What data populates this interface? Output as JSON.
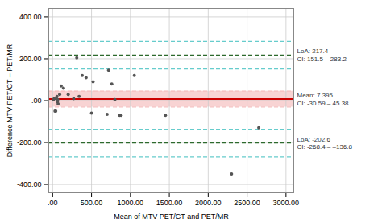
{
  "chart_data": {
    "type": "scatter",
    "xlabel": "Mean of MTV PET/CT and PET/MR",
    "ylabel": "Difference MTV PET/CT – PET/MR",
    "xlim": [
      -50,
      3100
    ],
    "ylim": [
      -440,
      440
    ],
    "xticks": [
      {
        "value": 0,
        "label": ".00"
      },
      {
        "value": 500,
        "label": "500.00"
      },
      {
        "value": 1000,
        "label": "1000.00"
      },
      {
        "value": 1500,
        "label": "1500.00"
      },
      {
        "value": 2000,
        "label": "2000.00"
      },
      {
        "value": 2500,
        "label": "2500.00"
      },
      {
        "value": 3000,
        "label": "3000.00"
      }
    ],
    "yticks": [
      {
        "value": -400,
        "label": "-400.00"
      },
      {
        "value": -200,
        "label": "-200.00"
      },
      {
        "value": 0,
        "label": ".00"
      },
      {
        "value": 200,
        "label": "200.00"
      },
      {
        "value": 400,
        "label": "400.00"
      }
    ],
    "grid": true,
    "color": "#555555",
    "x": [
      10,
      20,
      30,
      40,
      50,
      55,
      60,
      65,
      70,
      90,
      110,
      140,
      200,
      270,
      310,
      340,
      380,
      430,
      500,
      520,
      700,
      720,
      760,
      800,
      860,
      880,
      1050,
      1450,
      2300,
      2650
    ],
    "values": [
      5,
      10,
      -50,
      -50,
      10,
      20,
      -5,
      5,
      -15,
      30,
      70,
      60,
      30,
      10,
      205,
      20,
      120,
      110,
      -60,
      90,
      -65,
      145,
      80,
      5,
      -70,
      -70,
      120,
      -70,
      -350,
      -130
    ],
    "band": {
      "lower": -30.59,
      "upper": 45.38,
      "color": "#f5c0c0"
    },
    "reference_lines": [
      {
        "value": 151.5,
        "color": "#66cccc",
        "line_style": "dashed"
      },
      {
        "value": 283.2,
        "color": "#66cccc",
        "line_style": "dashed"
      },
      {
        "value": -268.4,
        "color": "#66cccc",
        "line_style": "dashed"
      },
      {
        "value": -136.8,
        "color": "#66cccc",
        "line_style": "dashed"
      },
      {
        "value": -30.59,
        "color": "#f5c0c0",
        "line_style": "dashed"
      },
      {
        "value": 45.38,
        "color": "#f5c0c0",
        "line_style": "dashed"
      },
      {
        "value": 7.395,
        "color": "#cc0000",
        "line_style": "solid"
      },
      {
        "value": 217.4,
        "color": "#2d6a2d",
        "line_style": "dashed"
      },
      {
        "value": -202.6,
        "color": "#2d6a2d",
        "line_style": "dashed"
      }
    ],
    "annotations": [
      {
        "text": "LoA: 217.4",
        "value": 217.4,
        "color": "#333333"
      },
      {
        "text": "CI: 151.5 – 283.2",
        "value": 217.4,
        "color": "#333333"
      },
      {
        "text": "Mean: 7.395",
        "value": 7.395,
        "color": "#333333"
      },
      {
        "text": "CI: -30.59 – 45.38",
        "value": 7.395,
        "color": "#333333"
      },
      {
        "text": "LoA: -202.6",
        "value": -202.6,
        "color": "#333333"
      },
      {
        "text": "CI: -268.4 – –136.8",
        "value": -202.6,
        "color": "#333333"
      }
    ]
  }
}
